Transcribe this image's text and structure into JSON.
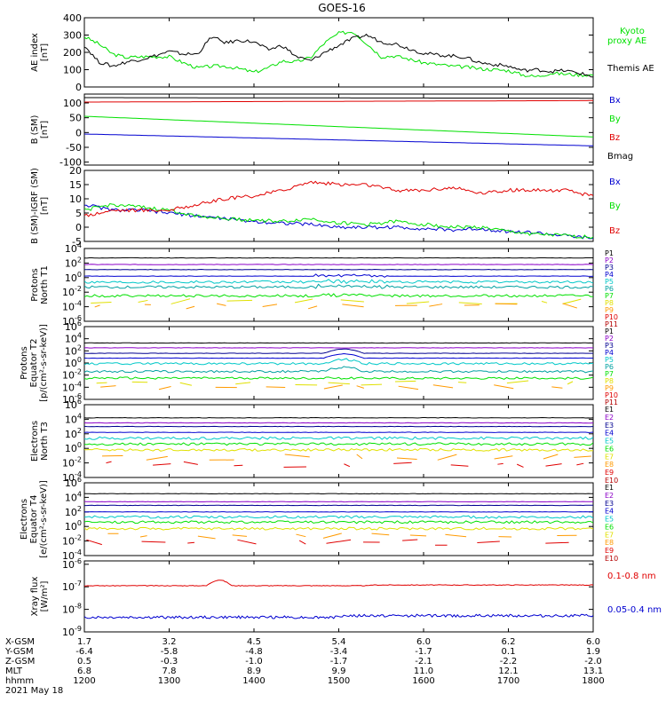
{
  "title": "GOES-16",
  "colors": {
    "black": "#000000",
    "red": "#e00000",
    "green": "#00e000",
    "blue": "#0000d0",
    "cyan": "#00c8c8",
    "purple": "#8c00c8",
    "navy": "#000090",
    "yellow": "#e0e000",
    "orange": "#ff9a00",
    "darkred": "#b40000",
    "magenta": "#c000c0",
    "teal": "#00a0a0"
  },
  "chart_data": [
    {
      "type": "line",
      "id": "ae",
      "ylabel": "AE index\n[nT]",
      "ylim": [
        0,
        400
      ],
      "yticks": [
        0,
        100,
        200,
        300,
        400
      ],
      "scale": "linear",
      "x": [
        1200,
        1210,
        1220,
        1230,
        1240,
        1250,
        1300,
        1310,
        1320,
        1330,
        1340,
        1350,
        1400,
        1410,
        1420,
        1430,
        1440,
        1450,
        1500,
        1510,
        1520,
        1530,
        1540,
        1550,
        1600,
        1610,
        1620,
        1630,
        1640,
        1650,
        1700,
        1710,
        1720,
        1730,
        1740,
        1750,
        1800
      ],
      "series": [
        {
          "name": "Kyoto\nproxy AE",
          "color": "#00e000",
          "values": [
            290,
            250,
            190,
            170,
            175,
            175,
            175,
            140,
            110,
            120,
            120,
            105,
            85,
            110,
            150,
            145,
            170,
            255,
            310,
            320,
            250,
            175,
            180,
            160,
            140,
            130,
            120,
            115,
            105,
            100,
            95,
            70,
            60,
            80,
            75,
            70,
            70
          ]
        },
        {
          "name": "Themis AE",
          "color": "#000000",
          "values": [
            240,
            145,
            120,
            145,
            160,
            180,
            205,
            190,
            190,
            290,
            255,
            270,
            260,
            215,
            240,
            175,
            150,
            200,
            240,
            280,
            300,
            260,
            250,
            220,
            195,
            185,
            180,
            170,
            140,
            130,
            120,
            95,
            100,
            90,
            95,
            80,
            60
          ]
        }
      ]
    },
    {
      "type": "line",
      "id": "bsm",
      "ylabel": "B (SM)\n[nT]",
      "ylim": [
        -110,
        130
      ],
      "yticks": [
        -100,
        -50,
        0,
        50,
        100
      ],
      "scale": "linear",
      "x": [
        1200,
        1800
      ],
      "series": [
        {
          "name": "Bx",
          "color": "#0000d0",
          "values": [
            -5,
            -45
          ]
        },
        {
          "name": "By",
          "color": "#00e000",
          "values": [
            55,
            -15
          ]
        },
        {
          "name": "Bz",
          "color": "#e00000",
          "values": [
            103,
            108
          ]
        },
        {
          "name": "Bmag",
          "color": "#000000",
          "values": [
            118,
            116
          ]
        }
      ]
    },
    {
      "type": "line",
      "id": "bdiff",
      "ylabel": "B (SM)-IGRF (SM)\n[nT]",
      "ylim": [
        -5,
        20
      ],
      "yticks": [
        -5,
        0,
        5,
        10,
        15,
        20
      ],
      "scale": "linear",
      "x": [
        1200,
        1220,
        1240,
        1300,
        1320,
        1340,
        1400,
        1420,
        1440,
        1500,
        1520,
        1540,
        1600,
        1620,
        1640,
        1700,
        1720,
        1740,
        1800
      ],
      "series": [
        {
          "name": "Bx",
          "color": "#0000d0",
          "values": [
            8,
            6,
            6,
            5,
            4,
            3,
            2,
            1.5,
            1,
            0,
            0,
            0,
            -0.5,
            -1,
            -0.5,
            -1.5,
            -2,
            -3,
            -4
          ]
        },
        {
          "name": "By",
          "color": "#00e000",
          "values": [
            6,
            8,
            7,
            6,
            4,
            3,
            2.5,
            2,
            3,
            1.5,
            1,
            2,
            1,
            0,
            0,
            -1.5,
            -2.5,
            -3,
            -3.5
          ]
        },
        {
          "name": "Bz",
          "color": "#e00000",
          "values": [
            4,
            6,
            6,
            6,
            8,
            10,
            11,
            13,
            16,
            15,
            15,
            13,
            13,
            14,
            12,
            13,
            13,
            13,
            11
          ]
        }
      ]
    },
    {
      "type": "line",
      "id": "pnorth",
      "ylabel": "Protons\nNorth T1",
      "scale": "log",
      "ylim_exp": [
        -6,
        4
      ],
      "ytick_exps": [
        -6,
        -4,
        -2,
        0,
        2,
        4
      ],
      "labels": [
        "P1",
        "P2",
        "P3",
        "P4",
        "P5",
        "P6",
        "P7",
        "P8",
        "P9",
        "P10",
        "P11"
      ],
      "label_colors": [
        "#000000",
        "#8c00c8",
        "#000090",
        "#0000d0",
        "#00c8c8",
        "#00a0a0",
        "#00e000",
        "#e0e000",
        "#ff9a00",
        "#e00000",
        "#b40000"
      ],
      "level_exps": [
        2.7,
        1.8,
        1.1,
        0.2,
        -0.6,
        -1.3,
        -2.5,
        -3.3,
        -3.9
      ]
    },
    {
      "type": "line",
      "id": "pequator",
      "ylabel": "Protons\nEquator T2\n[p/(cm²-s-sr-keV)]",
      "scale": "log",
      "ylim_exp": [
        -6,
        6
      ],
      "ytick_exps": [
        -6,
        -4,
        -2,
        0,
        2,
        4,
        6
      ],
      "labels": [
        "P1",
        "P2",
        "P3",
        "P4",
        "P5",
        "P6",
        "P7",
        "P8",
        "P9",
        "P10",
        "P11"
      ],
      "label_colors": [
        "#000000",
        "#8c00c8",
        "#000090",
        "#0000d0",
        "#00c8c8",
        "#00a0a0",
        "#00e000",
        "#e0e000",
        "#ff9a00",
        "#e00000",
        "#b40000"
      ],
      "level_exps": [
        3.3,
        2.5,
        1.6,
        0.8,
        -0.1,
        -1.4,
        -2.5,
        -3.3,
        -4.0
      ]
    },
    {
      "type": "line",
      "id": "enorth",
      "ylabel": "Electrons\nNorth T3",
      "scale": "log",
      "ylim_exp": [
        -4,
        6
      ],
      "ytick_exps": [
        -4,
        -2,
        0,
        2,
        4,
        6
      ],
      "labels": [
        "E1",
        "E2",
        "E3",
        "E4",
        "E5",
        "E6",
        "E7",
        "E8",
        "E9",
        "E10"
      ],
      "label_colors": [
        "#000000",
        "#8c00c8",
        "#000090",
        "#0000d0",
        "#00c8c8",
        "#00e000",
        "#e0e000",
        "#ff9a00",
        "#e00000",
        "#b40000"
      ],
      "level_exps": [
        4.2,
        3.5,
        3.0,
        2.2,
        1.4,
        0.6,
        -0.2,
        -1.2,
        -2.2
      ]
    },
    {
      "type": "line",
      "id": "eequator",
      "ylabel": "Electrons\nEquator T4\n[e/(cm²-s-sr-keV)]",
      "scale": "log",
      "ylim_exp": [
        -4,
        6
      ],
      "ytick_exps": [
        -4,
        -2,
        0,
        2,
        4,
        6
      ],
      "labels": [
        "E1",
        "E2",
        "E3",
        "E4",
        "E5",
        "E6",
        "E7",
        "E8",
        "E9",
        "E10"
      ],
      "label_colors": [
        "#000000",
        "#8c00c8",
        "#000090",
        "#0000d0",
        "#00c8c8",
        "#00e000",
        "#e0e000",
        "#ff9a00",
        "#e00000",
        "#b40000"
      ],
      "level_exps": [
        4.5,
        3.4,
        2.9,
        2.0,
        1.3,
        0.6,
        -0.3,
        -1.3,
        -2.2
      ]
    },
    {
      "type": "line",
      "id": "xray",
      "ylabel": "Xray flux\n[W/m²]",
      "scale": "log",
      "ylim_exp": [
        -9,
        -5.85
      ],
      "ytick_exps": [
        -9,
        -8,
        -7,
        -6
      ],
      "series": [
        {
          "name": "0.1-0.8 nm",
          "color": "#e00000",
          "level_exp": -6.95
        },
        {
          "name": "0.05-0.4 nm",
          "color": "#0000d0",
          "level_exp": -8.35
        }
      ]
    }
  ],
  "x_axis": {
    "time_ticks": [
      "1200",
      "1300",
      "1400",
      "1500",
      "1600",
      "1700",
      "1800"
    ],
    "rows": [
      {
        "label": "X-GSM",
        "values": [
          "1.7",
          "3.2",
          "4.5",
          "5.4",
          "6.0",
          "6.2",
          "6.0"
        ]
      },
      {
        "label": "Y-GSM",
        "values": [
          "-6.4",
          "-5.8",
          "-4.8",
          "-3.4",
          "-1.7",
          "0.1",
          "1.9"
        ]
      },
      {
        "label": "Z-GSM",
        "values": [
          "0.5",
          "-0.3",
          "-1.0",
          "-1.7",
          "-2.1",
          "-2.2",
          "-2.0"
        ]
      },
      {
        "label": "MLT",
        "values": [
          "6.8",
          "7.8",
          "8.9",
          "9.9",
          "11.0",
          "12.1",
          "13.1"
        ]
      },
      {
        "label": "hhmm",
        "values": [
          "1200",
          "1300",
          "1400",
          "1500",
          "1600",
          "1700",
          "1800"
        ]
      }
    ],
    "date": "2021 May 18"
  }
}
